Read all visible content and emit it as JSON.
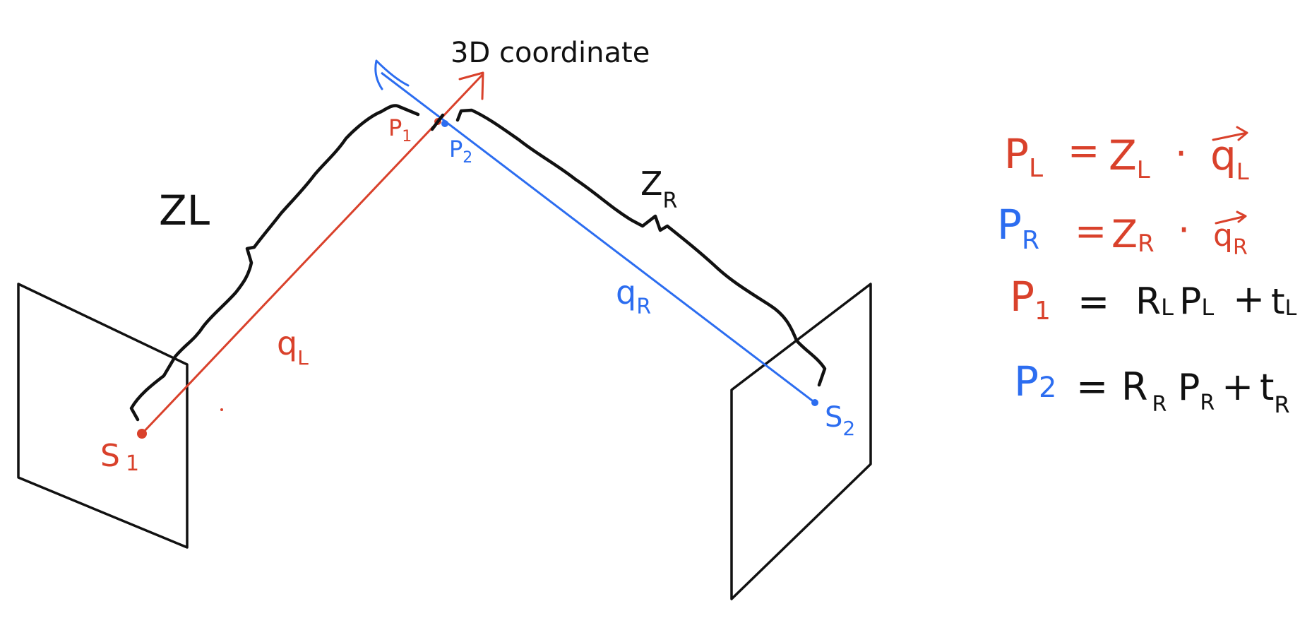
{
  "colors": {
    "red": "#d9412b",
    "blue": "#2c6df0",
    "black": "#111111"
  },
  "labels": {
    "coordinate": "3D coordinate",
    "zl": "ZL",
    "zr_z": "Z",
    "zr_sub": "R",
    "p1": "P",
    "p1_sub": "1",
    "p2": "P",
    "p2_sub": "2",
    "ql": "q",
    "ql_sub": "L",
    "qr": "q",
    "qr_sub": "R",
    "s1": "S",
    "s1_sub": "1",
    "s2": "S",
    "s2_sub": "2"
  },
  "equations": [
    {
      "lhs": "P",
      "lhs_sub": "L",
      "rhs_1": "Z",
      "rhs_1_sub": "L",
      "op": "·",
      "rhs_2": "q",
      "rhs_2_sub": "L"
    },
    {
      "lhs": "P",
      "lhs_sub": "R",
      "rhs_1": "Z",
      "rhs_1_sub": "R",
      "op": "·",
      "rhs_2": "q",
      "rhs_2_sub": "R"
    },
    {
      "lhs": "P",
      "lhs_sub": "1",
      "rhs_1": "R",
      "rhs_1_sub": "L",
      "rhs_2": "P",
      "rhs_2_sub": "L",
      "op": "+",
      "rhs_3": "t",
      "rhs_3_sub": "L"
    },
    {
      "lhs": "P",
      "lhs_sub": "2",
      "rhs_1": "R",
      "rhs_1_sub": "R",
      "rhs_2": "P",
      "rhs_2_sub": "R",
      "op": "+",
      "rhs_3": "t",
      "rhs_3_sub": "R"
    }
  ]
}
